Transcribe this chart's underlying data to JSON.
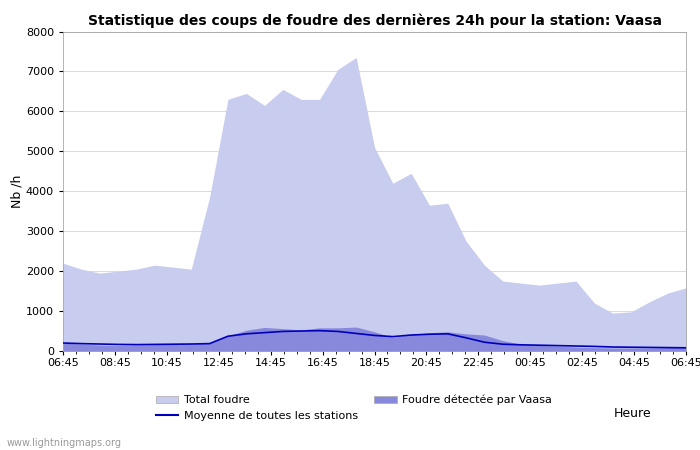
{
  "title": "Statistique des coups de foudre des dernières 24h pour la station: Vaasa",
  "ylabel": "Nb /h",
  "xlabel": "Heure",
  "watermark": "www.lightningmaps.org",
  "x_labels": [
    "06:45",
    "08:45",
    "10:45",
    "12:45",
    "14:45",
    "16:45",
    "18:45",
    "20:45",
    "22:45",
    "00:45",
    "02:45",
    "04:45",
    "06:45"
  ],
  "ylim": [
    0,
    8000
  ],
  "yticks": [
    0,
    1000,
    2000,
    3000,
    4000,
    5000,
    6000,
    7000,
    8000
  ],
  "total_foudre_color": "#c8ccee",
  "vaasa_color": "#8888dd",
  "moyenne_color": "#0000bb",
  "background_color": "#ffffff",
  "plot_bg_color": "#ffffff",
  "total_foudre": [
    2200,
    2050,
    1950,
    2000,
    2050,
    2150,
    2100,
    2050,
    3850,
    6300,
    6450,
    6150,
    6550,
    6300,
    6300,
    7050,
    7350,
    5100,
    4200,
    4450,
    3650,
    3700,
    2750,
    2150,
    1750,
    1700,
    1650,
    1700,
    1750,
    1200,
    950,
    980,
    1230,
    1450,
    1580
  ],
  "vaasa_foudre": [
    200,
    170,
    150,
    140,
    150,
    160,
    170,
    180,
    200,
    380,
    520,
    590,
    560,
    530,
    580,
    580,
    600,
    480,
    340,
    410,
    460,
    480,
    430,
    400,
    260,
    170,
    140,
    120,
    100,
    85,
    75,
    75,
    75,
    85,
    95
  ],
  "moyenne": [
    200,
    185,
    175,
    165,
    160,
    165,
    170,
    175,
    185,
    370,
    430,
    460,
    490,
    500,
    510,
    490,
    440,
    390,
    360,
    400,
    420,
    430,
    330,
    220,
    170,
    155,
    145,
    135,
    125,
    115,
    100,
    95,
    90,
    85,
    80
  ],
  "n_points": 35
}
